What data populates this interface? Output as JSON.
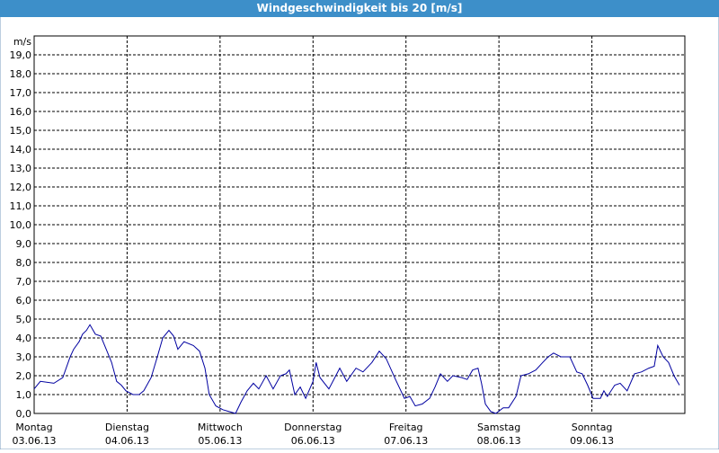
{
  "chart_data": {
    "type": "line",
    "title": "Windgeschwindigkeit bis 20 [m/s]",
    "y_label": "m/s",
    "x": [
      0,
      1.6,
      5.1,
      7.4,
      9.3,
      10.2,
      11.6,
      12.5,
      13.5,
      14.4,
      15.8,
      17.2,
      18.6,
      20.0,
      21.3,
      22.5,
      23.7,
      25.5,
      27.1,
      28.3,
      30.2,
      31.8,
      33.2,
      34.8,
      36.0,
      37.1,
      38.7,
      41.1,
      42.7,
      44.1,
      45.2,
      46.9,
      48.7,
      50.3,
      52.0,
      53.4,
      55.0,
      56.6,
      58.0,
      59.9,
      61.7,
      63.6,
      65.0,
      65.9,
      67.3,
      68.7,
      70.1,
      72.0,
      72.8,
      73.8,
      76.1,
      78.9,
      80.7,
      83.1,
      84.9,
      87.2,
      89.1,
      90.9,
      93.3,
      95.6,
      97.0,
      98.4,
      100.2,
      102.1,
      103.5,
      104.9,
      106.7,
      108.1,
      110.4,
      111.8,
      113.2,
      114.6,
      115.5,
      116.5,
      117.9,
      119.2,
      121.1,
      122.5,
      124.4,
      125.7,
      127.6,
      129.5,
      131.3,
      132.7,
      134.1,
      136.0,
      138.3,
      140.1,
      141.5,
      142.9,
      144.3,
      146.2,
      147.1,
      148.0,
      149.9,
      151.3,
      153.1,
      155.0,
      156.8,
      158.7,
      160.1,
      161.0,
      162.4,
      163.8,
      165.2,
      166.6
    ],
    "series": [
      {
        "name": "Windgeschwindigkeit",
        "color": "#0000a0",
        "values": [
          1.3,
          1.7,
          1.6,
          1.9,
          3.0,
          3.4,
          3.8,
          4.2,
          4.4,
          4.7,
          4.2,
          4.1,
          3.4,
          2.7,
          1.7,
          1.5,
          1.2,
          1.0,
          1.0,
          1.2,
          1.9,
          3.0,
          4.0,
          4.4,
          4.1,
          3.4,
          3.8,
          3.6,
          3.3,
          2.4,
          1.0,
          0.4,
          0.2,
          0.1,
          0.0,
          0.6,
          1.2,
          1.6,
          1.3,
          2.0,
          1.3,
          2.0,
          2.1,
          2.3,
          1.0,
          1.4,
          0.8,
          1.7,
          2.7,
          1.9,
          1.3,
          2.4,
          1.7,
          2.4,
          2.2,
          2.7,
          3.3,
          2.9,
          1.8,
          0.8,
          0.9,
          0.4,
          0.5,
          0.8,
          1.4,
          2.1,
          1.7,
          2.0,
          1.9,
          1.8,
          2.3,
          2.4,
          1.6,
          0.5,
          0.1,
          0.0,
          0.3,
          0.3,
          0.9,
          2.0,
          2.1,
          2.3,
          2.7,
          3.0,
          3.2,
          3.0,
          3.0,
          2.2,
          2.1,
          1.5,
          0.8,
          0.8,
          1.2,
          0.9,
          1.5,
          1.6,
          1.2,
          2.1,
          2.2,
          2.4,
          2.5,
          3.6,
          3.0,
          2.7,
          2.0,
          1.5
        ]
      }
    ],
    "xlim": [
      0,
      168
    ],
    "xticks": [
      {
        "value": 0,
        "label": [
          "Montag",
          "03.06.13"
        ]
      },
      {
        "value": 24,
        "label": [
          "Dienstag",
          "04.06.13"
        ]
      },
      {
        "value": 48,
        "label": [
          "Mittwoch",
          "05.06.13"
        ]
      },
      {
        "value": 72,
        "label": [
          "Donnerstag",
          "06.06.13"
        ]
      },
      {
        "value": 96,
        "label": [
          "Freitag",
          "07.06.13"
        ]
      },
      {
        "value": 120,
        "label": [
          "Samstag",
          "08.06.13"
        ]
      },
      {
        "value": 144,
        "label": [
          "Sonntag",
          "09.06.13"
        ]
      }
    ],
    "ylim": [
      0,
      20
    ],
    "yticks": [
      {
        "value": 0,
        "label": "0,0"
      },
      {
        "value": 1,
        "label": "1,0"
      },
      {
        "value": 2,
        "label": "2,0"
      },
      {
        "value": 3,
        "label": "3,0"
      },
      {
        "value": 4,
        "label": "4,0"
      },
      {
        "value": 5,
        "label": "5,0"
      },
      {
        "value": 6,
        "label": "6,0"
      },
      {
        "value": 7,
        "label": "7,0"
      },
      {
        "value": 8,
        "label": "8,0"
      },
      {
        "value": 9,
        "label": "9,0"
      },
      {
        "value": 10,
        "label": "10,0"
      },
      {
        "value": 11,
        "label": "11,0"
      },
      {
        "value": 12,
        "label": "12,0"
      },
      {
        "value": 13,
        "label": "13,0"
      },
      {
        "value": 14,
        "label": "14,0"
      },
      {
        "value": 15,
        "label": "15,0"
      },
      {
        "value": 16,
        "label": "16,0"
      },
      {
        "value": 17,
        "label": "17,0"
      },
      {
        "value": 18,
        "label": "18,0"
      },
      {
        "value": 19,
        "label": "19,0"
      }
    ],
    "grid": true
  }
}
